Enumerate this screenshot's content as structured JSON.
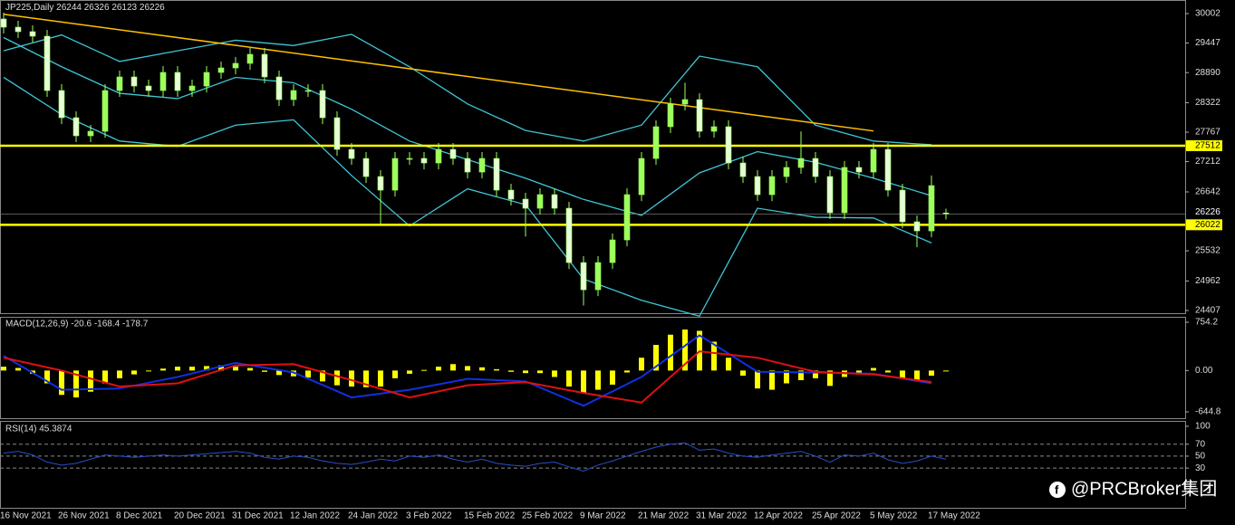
{
  "chart_data": [
    {
      "type": "candlestick",
      "title": "JP225,Daily",
      "header_values": "26244 26326 26123 26226",
      "categories": [
        "16 Nov 2021",
        null,
        null,
        null,
        "26 Nov 2021",
        null,
        null,
        null,
        "8 Dec 2021",
        null,
        null,
        null,
        "20 Dec 2021",
        null,
        null,
        null,
        "31 Dec 2021",
        null,
        null,
        null,
        "12 Jan 2022",
        null,
        null,
        null,
        "24 Jan 2022",
        null,
        null,
        null,
        "3 Feb 2022",
        null,
        null,
        null,
        "15 Feb 2022",
        null,
        null,
        null,
        "25 Feb 2022",
        null,
        null,
        null,
        "9 Mar 2022",
        null,
        null,
        null,
        "21 Mar 2022",
        null,
        null,
        null,
        "31 Mar 2022",
        null,
        null,
        null,
        "12 Apr 2022",
        null,
        null,
        null,
        "25 Apr 2022",
        null,
        null,
        null,
        "5 May 2022",
        null,
        null,
        null,
        "17 May 2022",
        null
      ],
      "open": [
        29900,
        29746,
        29661,
        29576,
        28552,
        28040,
        27699,
        27784,
        28552,
        28808,
        28637,
        28552,
        28893,
        28552,
        28637,
        28893,
        28978,
        29064,
        29234,
        28808,
        28381,
        28552,
        28552,
        28040,
        27443,
        27272,
        26931,
        26675,
        27272,
        27272,
        27187,
        27443,
        27272,
        27016,
        27272,
        26675,
        26505,
        26334,
        26590,
        26334,
        25310,
        24798,
        25310,
        25737,
        26590,
        27272,
        27870,
        28296,
        28381,
        27784,
        27870,
        27187,
        26931,
        26590,
        26931,
        27102,
        27272,
        26931,
        26249,
        27102,
        27016,
        27443,
        26675,
        26078,
        25907,
        26244
      ],
      "high": [
        30020,
        29866,
        29781,
        29696,
        28672,
        28160,
        27904,
        28672,
        28928,
        28928,
        28757,
        29013,
        29013,
        28757,
        29013,
        29098,
        29184,
        29354,
        29354,
        28928,
        28672,
        28672,
        28672,
        28160,
        27563,
        27392,
        27051,
        27392,
        27392,
        27392,
        27563,
        27563,
        27392,
        27392,
        27392,
        26795,
        26625,
        26710,
        26710,
        26454,
        25430,
        25430,
        25857,
        26710,
        27392,
        27990,
        28416,
        28700,
        28501,
        27990,
        27990,
        27307,
        27051,
        27051,
        27222,
        27780,
        27392,
        27051,
        27222,
        27222,
        27563,
        27563,
        26795,
        26198,
        26950,
        26326
      ],
      "low": [
        29626,
        29541,
        29456,
        28432,
        27920,
        27579,
        27579,
        27664,
        28432,
        28517,
        28432,
        28432,
        28432,
        28432,
        28517,
        28773,
        28858,
        28944,
        28688,
        28261,
        28261,
        28432,
        27920,
        27323,
        27152,
        26811,
        26030,
        26555,
        27152,
        27067,
        27067,
        27152,
        26896,
        26896,
        26555,
        26385,
        25800,
        26214,
        26214,
        25190,
        24500,
        24678,
        25190,
        25617,
        26470,
        27152,
        27750,
        28176,
        27664,
        27664,
        27067,
        26811,
        26470,
        26470,
        26811,
        26982,
        26811,
        26129,
        26129,
        26896,
        26896,
        26555,
        25958,
        25600,
        25787,
        26123
      ],
      "close": [
        29746,
        29661,
        29576,
        28552,
        28040,
        27699,
        27784,
        28552,
        28808,
        28637,
        28552,
        28893,
        28552,
        28637,
        28893,
        28978,
        29064,
        29234,
        28808,
        28381,
        28552,
        28552,
        28040,
        27443,
        27272,
        26931,
        26675,
        27272,
        27272,
        27187,
        27443,
        27272,
        27016,
        27272,
        26675,
        26505,
        26334,
        26590,
        26334,
        25310,
        24798,
        25310,
        25737,
        26590,
        27272,
        27870,
        28296,
        28381,
        27784,
        27870,
        27187,
        26931,
        26590,
        26931,
        27102,
        27272,
        26931,
        26249,
        27102,
        27016,
        27443,
        26675,
        26078,
        25907,
        26760,
        26226
      ],
      "up_color": "#9dff5c",
      "down_color": "#e6ffd6",
      "bollinger": {
        "color": "#3fc6d6",
        "x": [
          0,
          4,
          8,
          12,
          16,
          20,
          24,
          28,
          32,
          36,
          40,
          44,
          48,
          52,
          56,
          60,
          64
        ],
        "upper": [
          29300,
          29600,
          29100,
          29300,
          29500,
          29400,
          29610,
          29000,
          28300,
          27800,
          27600,
          27900,
          29200,
          29000,
          27900,
          27600,
          27530
        ],
        "middle": [
          29550,
          29000,
          28500,
          28400,
          28800,
          28700,
          28200,
          27600,
          27250,
          26900,
          26500,
          26200,
          27000,
          27400,
          27200,
          26900,
          26570
        ],
        "lower": [
          28800,
          28100,
          27600,
          27500,
          27900,
          28000,
          26950,
          26000,
          26700,
          26400,
          25000,
          24600,
          24300,
          26334,
          26163,
          26150,
          25680
        ]
      },
      "trendline": {
        "color": "#ffc000",
        "x": [
          0,
          60
        ],
        "values": [
          29990,
          27790
        ]
      },
      "levels": [
        {
          "value": 27512,
          "color": "#ffff00"
        },
        {
          "value": 26022,
          "color": "#ffff00"
        }
      ],
      "ylim": [
        24356,
        30258
      ],
      "yticks": [
        30002,
        29447,
        28890,
        28322,
        27767,
        27212,
        26642,
        25532,
        24962,
        24407
      ]
    },
    {
      "type": "macd",
      "title": "MACD(12,26,9) -20.6 -168.4 -178.7",
      "values": [
        60,
        40,
        -50,
        -200,
        -380,
        -420,
        -330,
        -200,
        -120,
        -60,
        -10,
        30,
        60,
        60,
        70,
        80,
        60,
        40,
        -20,
        -70,
        -90,
        -110,
        -170,
        -230,
        -250,
        -260,
        -250,
        -120,
        -50,
        10,
        60,
        100,
        70,
        50,
        20,
        -20,
        -40,
        -40,
        -100,
        -250,
        -350,
        -300,
        -220,
        -30,
        200,
        400,
        560,
        640,
        620,
        450,
        200,
        -80,
        -280,
        -300,
        -200,
        -150,
        -120,
        -240,
        -100,
        -60,
        40,
        -30,
        -120,
        -170,
        -80,
        -10
      ],
      "color": "#ffff00",
      "lines": [
        {
          "color": "#1030e0",
          "x": [
            0,
            4,
            8,
            12,
            16,
            20,
            24,
            28,
            32,
            36,
            40,
            44,
            48,
            52,
            56,
            60,
            64
          ],
          "values": [
            230,
            -300,
            -280,
            -100,
            120,
            -30,
            -420,
            -300,
            -130,
            -170,
            -550,
            -100,
            550,
            -20,
            -30,
            -50,
            -200
          ]
        },
        {
          "color": "#e01010",
          "x": [
            0,
            4,
            8,
            12,
            16,
            20,
            24,
            28,
            32,
            36,
            40,
            44,
            48,
            52,
            56,
            60,
            64
          ],
          "values": [
            200,
            0,
            -250,
            -200,
            80,
            100,
            -150,
            -420,
            -230,
            -180,
            -350,
            -500,
            300,
            200,
            -20,
            -60,
            -180
          ]
        }
      ],
      "ylim": [
        -744,
        839
      ],
      "yticks": [
        754.2,
        {
          "value": 0,
          "label": "0.00"
        },
        -644.8
      ]
    },
    {
      "type": "line",
      "title": "RSI(14) 45.3874",
      "values": [
        55,
        58,
        52,
        40,
        35,
        38,
        45,
        52,
        50,
        48,
        50,
        52,
        50,
        52,
        54,
        56,
        58,
        55,
        48,
        45,
        50,
        48,
        42,
        38,
        36,
        40,
        45,
        42,
        50,
        48,
        52,
        45,
        40,
        45,
        38,
        35,
        33,
        38,
        40,
        32,
        25,
        35,
        42,
        50,
        58,
        65,
        70,
        72,
        60,
        62,
        55,
        50,
        48,
        52,
        55,
        58,
        50,
        40,
        52,
        50,
        55,
        44,
        38,
        42,
        50,
        45
      ],
      "color": "#2a4fc8",
      "levels": [
        70,
        50,
        30
      ],
      "ylim": [
        -38,
        109
      ],
      "yticks": [
        100,
        70,
        50,
        30
      ]
    }
  ],
  "watermark": "@PRCBroker集团"
}
